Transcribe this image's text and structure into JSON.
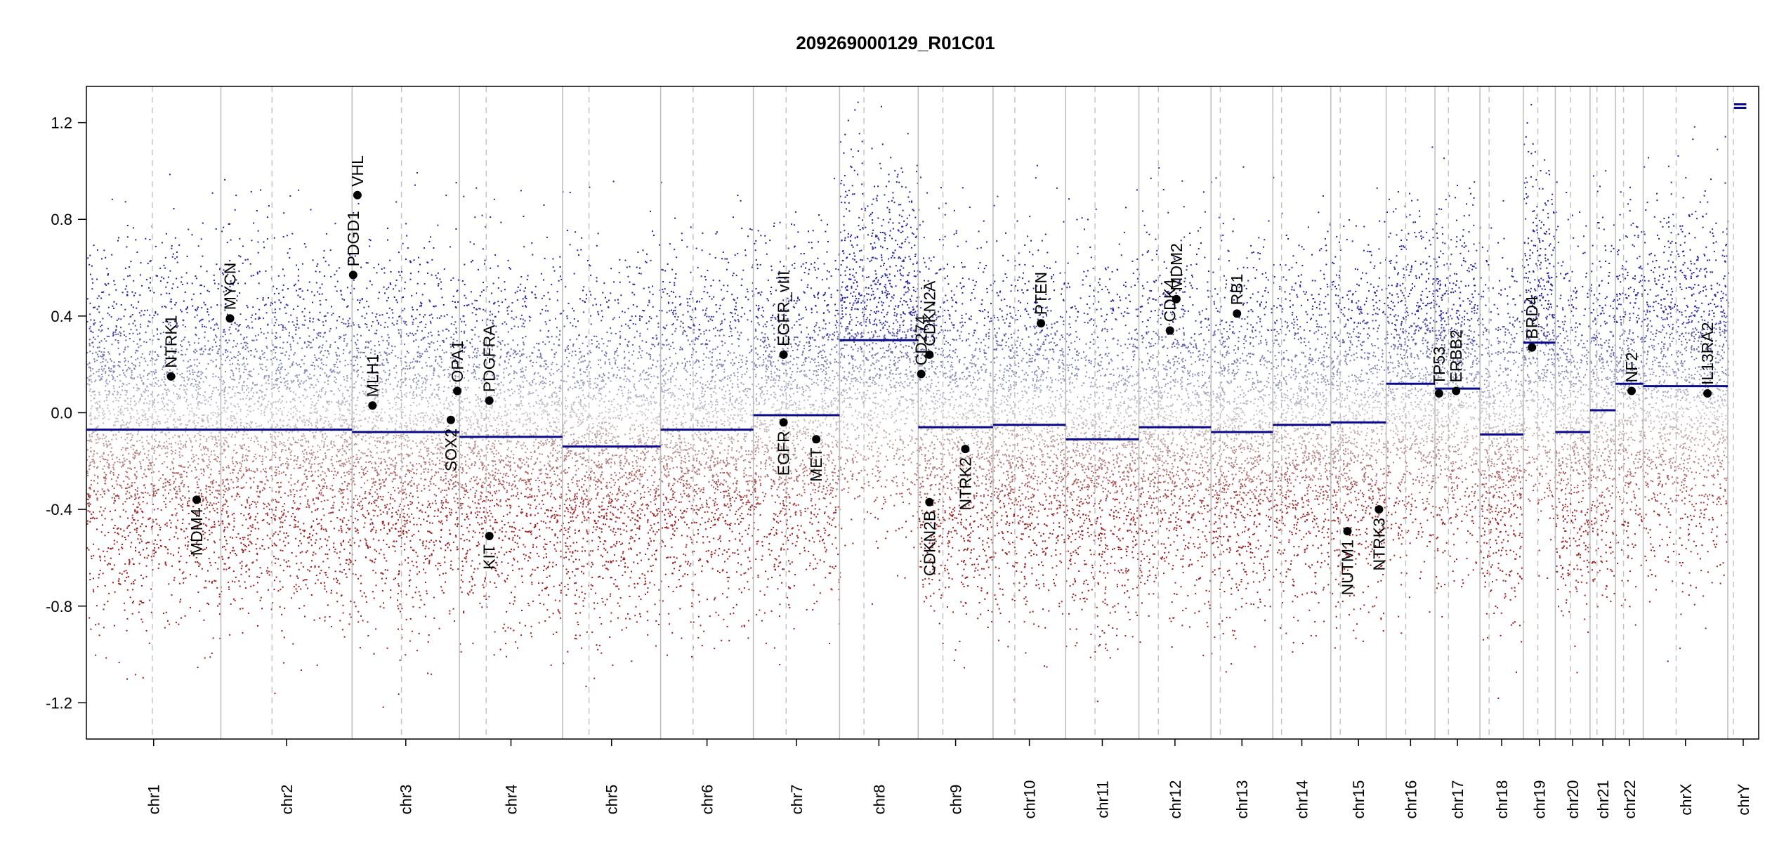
{
  "chart_data": {
    "type": "scatter",
    "title": "209269000129_R01C01",
    "xlabel": "",
    "ylabel": "",
    "ylim": [
      -1.35,
      1.35
    ],
    "yticks": [
      1.2,
      0.8,
      0.4,
      0.0,
      -0.4,
      -0.8,
      -1.2
    ],
    "ytick_labels": [
      "1.2",
      "0.8",
      "0.4",
      "0.0",
      "-0.4",
      "-0.8",
      "-1.2"
    ],
    "grid": false,
    "chromosomes": [
      {
        "name": "chr1",
        "length": 248,
        "centromere": 0.49,
        "segment": -0.07
      },
      {
        "name": "chr2",
        "length": 242,
        "centromere": 0.39,
        "segment": -0.07
      },
      {
        "name": "chr3",
        "length": 198,
        "centromere": 0.46,
        "segment": -0.08
      },
      {
        "name": "chr4",
        "length": 190,
        "centromere": 0.26,
        "segment": -0.1
      },
      {
        "name": "chr5",
        "length": 181,
        "centromere": 0.27,
        "segment": -0.14
      },
      {
        "name": "chr6",
        "length": 171,
        "centromere": 0.35,
        "segment": -0.07
      },
      {
        "name": "chr7",
        "length": 159,
        "centromere": 0.38,
        "segment": -0.01
      },
      {
        "name": "chr8",
        "length": 145,
        "centromere": 0.31,
        "segment": 0.3
      },
      {
        "name": "chr9",
        "length": 138,
        "centromere": 0.33,
        "segment": -0.06
      },
      {
        "name": "chr10",
        "length": 134,
        "centromere": 0.3,
        "segment": -0.05
      },
      {
        "name": "chr11",
        "length": 135,
        "centromere": 0.4,
        "segment": -0.11
      },
      {
        "name": "chr12",
        "length": 133,
        "centromere": 0.27,
        "segment": -0.06
      },
      {
        "name": "chr13",
        "length": 114,
        "centromere": 0.15,
        "segment": -0.08
      },
      {
        "name": "chr14",
        "length": 107,
        "centromere": 0.15,
        "segment": -0.05
      },
      {
        "name": "chr15",
        "length": 102,
        "centromere": 0.17,
        "segment": -0.04
      },
      {
        "name": "chr16",
        "length": 90,
        "centromere": 0.4,
        "segment": 0.12
      },
      {
        "name": "chr17",
        "length": 83,
        "centromere": 0.3,
        "segment": 0.1
      },
      {
        "name": "chr18",
        "length": 80,
        "centromere": 0.21,
        "segment": -0.09
      },
      {
        "name": "chr19",
        "length": 59,
        "centromere": 0.45,
        "segment": 0.29
      },
      {
        "name": "chr20",
        "length": 64,
        "centromere": 0.44,
        "segment": -0.08
      },
      {
        "name": "chr21",
        "length": 47,
        "centromere": 0.27,
        "segment": 0.01
      },
      {
        "name": "chr22",
        "length": 51,
        "centromere": 0.29,
        "segment": 0.12
      },
      {
        "name": "chrX",
        "length": 156,
        "centromere": 0.39,
        "segment": 0.11
      },
      {
        "name": "chrY",
        "length": 57,
        "centromere": 0.18,
        "segment": 1.27
      }
    ],
    "genes": [
      {
        "name": "NTRK1",
        "chr": "chr1",
        "pos": 0.63,
        "value": 0.15
      },
      {
        "name": "MDM4",
        "chr": "chr1",
        "pos": 0.82,
        "value": -0.36
      },
      {
        "name": "MYCN",
        "chr": "chr2",
        "pos": 0.07,
        "value": 0.39
      },
      {
        "name": "PDGD1",
        "chr": "chr3",
        "pos": 0.01,
        "value": 0.57
      },
      {
        "name": "VHL",
        "chr": "chr3",
        "pos": 0.05,
        "value": 0.9
      },
      {
        "name": "MLH1",
        "chr": "chr3",
        "pos": 0.19,
        "value": 0.03
      },
      {
        "name": "SOX2",
        "chr": "chr3",
        "pos": 0.92,
        "value": -0.03
      },
      {
        "name": "OPA1",
        "chr": "chr3",
        "pos": 0.98,
        "value": 0.09
      },
      {
        "name": "PDGFRA",
        "chr": "chr4",
        "pos": 0.29,
        "value": 0.05
      },
      {
        "name": "KIT",
        "chr": "chr4",
        "pos": 0.29,
        "value": -0.51
      },
      {
        "name": "EGFR_vIII",
        "chr": "chr7",
        "pos": 0.35,
        "value": 0.24
      },
      {
        "name": "EGFR",
        "chr": "chr7",
        "pos": 0.35,
        "value": -0.04
      },
      {
        "name": "MET",
        "chr": "chr7",
        "pos": 0.73,
        "value": -0.11
      },
      {
        "name": "CD274",
        "chr": "chr9",
        "pos": 0.04,
        "value": 0.16
      },
      {
        "name": "CDKN2A",
        "chr": "chr9",
        "pos": 0.15,
        "value": 0.24
      },
      {
        "name": "CDKN2B",
        "chr": "chr9",
        "pos": 0.15,
        "value": -0.37
      },
      {
        "name": "NTRK2",
        "chr": "chr9",
        "pos": 0.63,
        "value": -0.15
      },
      {
        "name": "PTEN",
        "chr": "chr10",
        "pos": 0.66,
        "value": 0.37
      },
      {
        "name": "CDK4",
        "chr": "chr12",
        "pos": 0.43,
        "value": 0.34
      },
      {
        "name": "MDM2",
        "chr": "chr12",
        "pos": 0.52,
        "value": 0.47
      },
      {
        "name": "RB1",
        "chr": "chr13",
        "pos": 0.42,
        "value": 0.41
      },
      {
        "name": "NUTM1",
        "chr": "chr15",
        "pos": 0.3,
        "value": -0.49
      },
      {
        "name": "NTRK3",
        "chr": "chr15",
        "pos": 0.87,
        "value": -0.4
      },
      {
        "name": "TP53",
        "chr": "chr17",
        "pos": 0.09,
        "value": 0.08
      },
      {
        "name": "ERBB2",
        "chr": "chr17",
        "pos": 0.47,
        "value": 0.09
      },
      {
        "name": "BRD4",
        "chr": "chr19",
        "pos": 0.27,
        "value": 0.27
      },
      {
        "name": "NF2",
        "chr": "chr22",
        "pos": 0.58,
        "value": 0.09
      },
      {
        "name": "IL13RA2",
        "chr": "chrX",
        "pos": 0.76,
        "value": 0.08
      }
    ],
    "colors": {
      "positive": "#1f1fa8",
      "negative": "#a01818",
      "neutral": "#c8c8c8",
      "segment": "#0a0a8c",
      "separator": "#bdbdbd",
      "centromere": "#c4c4c4",
      "gene_point": "#000000"
    }
  }
}
